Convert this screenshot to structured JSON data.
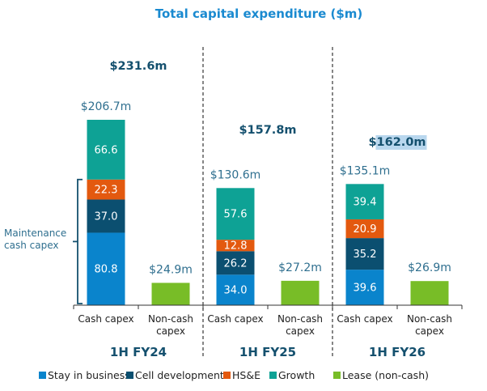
{
  "chart_data": {
    "type": "bar",
    "stacked": true,
    "title": "Total capital expenditure ($m)",
    "xlabel": "",
    "ylabel": "",
    "ylim": [
      0,
      210
    ],
    "grid": false,
    "legend_position": "bottom",
    "groups": [
      {
        "label": "1H FY24",
        "total_label": "$231.6m",
        "total_highlighted": false,
        "bars": [
          {
            "category": "Cash capex",
            "total_label": "$206.7m",
            "segments": [
              {
                "series": "Stay in business",
                "value": 80.8,
                "label": "80.8"
              },
              {
                "series": "Cell development",
                "value": 37.0,
                "label": "37.0"
              },
              {
                "series": "HS&E",
                "value": 22.3,
                "label": "22.3"
              },
              {
                "series": "Growth",
                "value": 66.6,
                "label": "66.6"
              }
            ]
          },
          {
            "category": "Non-cash capex",
            "category_lines": [
              "Non-cash",
              "capex"
            ],
            "total_label": "$24.9m",
            "segments": [
              {
                "series": "Lease (non-cash)",
                "value": 24.9,
                "label": ""
              }
            ]
          }
        ]
      },
      {
        "label": "1H FY25",
        "total_label": "$157.8m",
        "total_highlighted": false,
        "bars": [
          {
            "category": "Cash capex",
            "total_label": "$130.6m",
            "segments": [
              {
                "series": "Stay in business",
                "value": 34.0,
                "label": "34.0"
              },
              {
                "series": "Cell development",
                "value": 26.2,
                "label": "26.2"
              },
              {
                "series": "HS&E",
                "value": 12.8,
                "label": "12.8"
              },
              {
                "series": "Growth",
                "value": 57.6,
                "label": "57.6"
              }
            ]
          },
          {
            "category": "Non-cash capex",
            "category_lines": [
              "Non-cash",
              "capex"
            ],
            "total_label": "$27.2m",
            "segments": [
              {
                "series": "Lease (non-cash)",
                "value": 27.2,
                "label": ""
              }
            ]
          }
        ]
      },
      {
        "label": "1H FY26",
        "total_label": "$162.0m",
        "total_highlighted": true,
        "bars": [
          {
            "category": "Cash capex",
            "total_label": "$135.1m",
            "segments": [
              {
                "series": "Stay in business",
                "value": 39.6,
                "label": "39.6"
              },
              {
                "series": "Cell development",
                "value": 35.2,
                "label": "35.2"
              },
              {
                "series": "HS&E",
                "value": 20.9,
                "label": "20.9"
              },
              {
                "series": "Growth",
                "value": 39.4,
                "label": "39.4"
              }
            ]
          },
          {
            "category": "Non-cash capex",
            "category_lines": [
              "Non-cash",
              "capex"
            ],
            "total_label": "$26.9m",
            "segments": [
              {
                "series": "Lease (non-cash)",
                "value": 26.9,
                "label": ""
              }
            ]
          }
        ]
      }
    ],
    "series": [
      {
        "name": "Stay in business",
        "color": "#0a84cc"
      },
      {
        "name": "Cell development",
        "color": "#0b4f70"
      },
      {
        "name": "HS&E",
        "color": "#e3590f"
      },
      {
        "name": "Growth",
        "color": "#0ea295"
      },
      {
        "name": "Lease (non-cash)",
        "color": "#78bd27"
      }
    ],
    "annotations": [
      {
        "text_lines": [
          "Maintenance",
          "cash capex"
        ],
        "spans": "1H FY24 Cash capex: Stay in business + Cell development + HS&E"
      }
    ]
  }
}
